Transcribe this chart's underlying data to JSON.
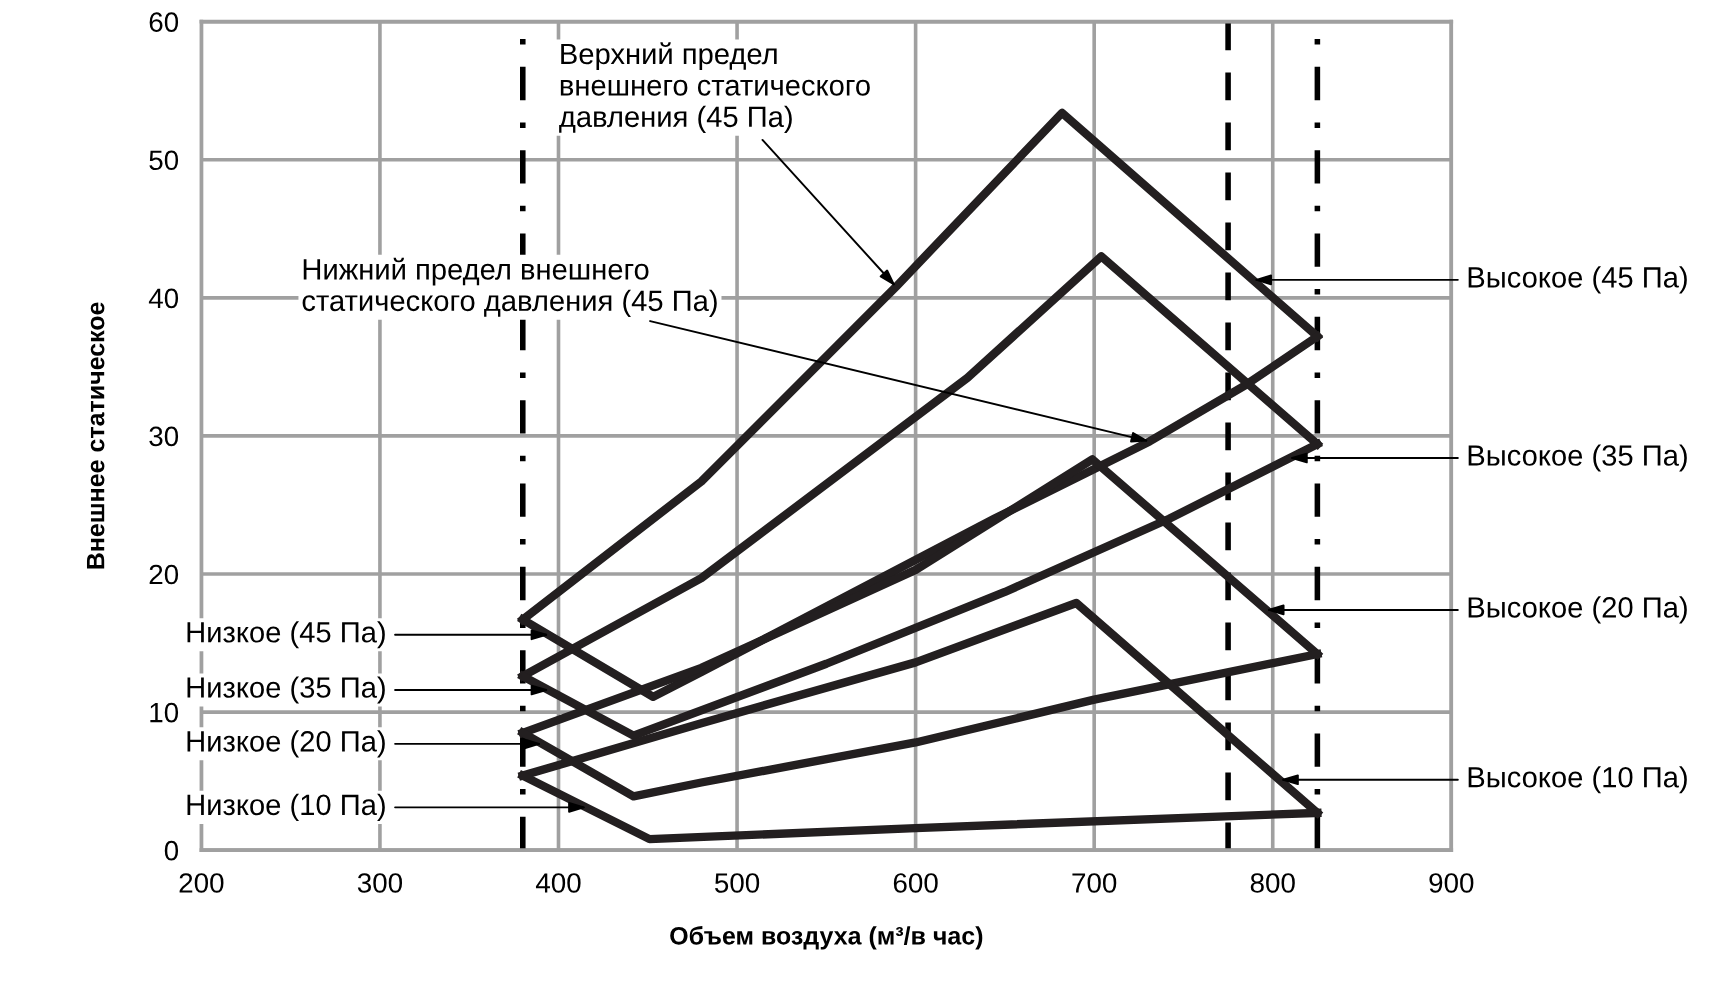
{
  "chart_data": {
    "type": "line",
    "xlabel": "Объем воздуха (м³/в час)",
    "ylabel": "Внешнее статическое",
    "xlim": [
      200,
      900
    ],
    "ylim": [
      0,
      60
    ],
    "xticks": [
      200,
      300,
      400,
      500,
      600,
      700,
      800,
      900
    ],
    "yticks": [
      0,
      10,
      20,
      30,
      40,
      50,
      60
    ],
    "grid": true,
    "line_style": "solid",
    "marker": "none",
    "series": [
      {
        "color": "#231f20",
        "x": [
          380,
          480,
          589,
          682,
          825
        ],
        "values": [
          16.7,
          26.7,
          40.8,
          53.4,
          37.2
        ]
      },
      {
        "color": "#231f20",
        "x": [
          380,
          453,
          480,
          644,
          731,
          785,
          825
        ],
        "values": [
          16.7,
          11.1,
          12.9,
          24.0,
          29.6,
          33.7,
          37.2
        ]
      },
      {
        "color": "#231f20",
        "x": [
          380,
          480,
          629,
          704,
          825
        ],
        "values": [
          12.6,
          19.7,
          34.2,
          43.0,
          29.4
        ]
      },
      {
        "color": "#231f20",
        "x": [
          380,
          442,
          550,
          650,
          742,
          825
        ],
        "values": [
          12.6,
          8.3,
          13.5,
          18.7,
          24.0,
          29.4
        ]
      },
      {
        "color": "#231f20",
        "x": [
          380,
          480,
          600,
          699,
          825
        ],
        "values": [
          8.5,
          13.2,
          20.3,
          28.3,
          14.2
        ]
      },
      {
        "color": "#231f20",
        "x": [
          380,
          442,
          480,
          600,
          700,
          825
        ],
        "values": [
          8.5,
          3.9,
          4.9,
          7.8,
          10.9,
          14.2
        ]
      },
      {
        "color": "#231f20",
        "x": [
          380,
          480,
          600,
          690,
          825
        ],
        "values": [
          5.4,
          9.2,
          13.6,
          17.9,
          2.7
        ]
      },
      {
        "color": "#231f20",
        "x": [
          380,
          451,
          600,
          825
        ],
        "values": [
          5.4,
          0.8,
          1.6,
          2.7
        ]
      }
    ],
    "ref_lines": [
      {
        "axis": "x",
        "value": 380,
        "line_style": "dashdot",
        "color": "#000000"
      },
      {
        "axis": "x",
        "value": 775,
        "line_style": "dashed",
        "color": "#000000"
      },
      {
        "axis": "x",
        "value": 825,
        "line_style": "dashdot",
        "color": "#000000"
      }
    ],
    "annotations": [
      {
        "text": "Верхний предел\nвнешнего статического\nдавления (45 Па)",
        "x": 589,
        "y": 40.8
      },
      {
        "text": "Нижний предел внешнего\nстатического давления (45 Па)",
        "x": 731,
        "y": 29.6
      },
      {
        "text": "Высокое (45 Па)",
        "x": 789,
        "y": 41.3
      },
      {
        "text": "Высокое (35 Па)",
        "x": 809,
        "y": 28.4
      },
      {
        "text": "Высокое (20 Па)",
        "x": 796,
        "y": 17.4
      },
      {
        "text": "Высокое (10 Па)",
        "x": 804,
        "y": 5.1
      },
      {
        "text": "Низкое (45 Па)",
        "x": 395,
        "y": 15.6
      },
      {
        "text": "Низкое (35 Па)",
        "x": 395,
        "y": 11.6
      },
      {
        "text": "Низкое (20 Па)",
        "x": 391,
        "y": 7.7
      },
      {
        "text": "Низкое (10 Па)",
        "x": 416,
        "y": 3.1
      }
    ]
  }
}
